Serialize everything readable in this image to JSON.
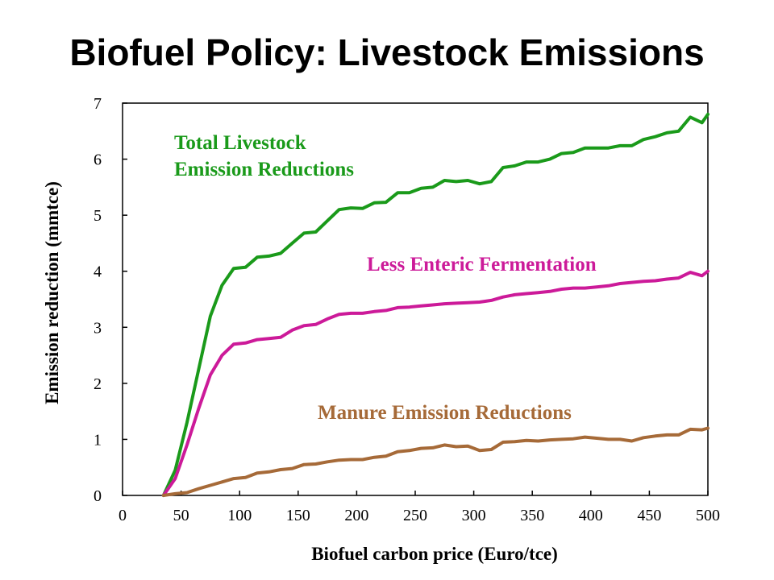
{
  "chart_data": {
    "type": "line",
    "title": "Biofuel Policy: Livestock Emissions",
    "xlabel": "Biofuel carbon price (Euro/tce)",
    "ylabel": "Emission reduction (mmtce)",
    "xlim": [
      0,
      500
    ],
    "ylim": [
      0,
      7
    ],
    "xticks": [
      0,
      50,
      100,
      150,
      200,
      250,
      300,
      350,
      400,
      450,
      500
    ],
    "yticks": [
      0,
      1,
      2,
      3,
      4,
      5,
      6,
      7
    ],
    "x": [
      35,
      45,
      55,
      65,
      75,
      85,
      95,
      105,
      115,
      125,
      135,
      145,
      155,
      165,
      175,
      185,
      195,
      205,
      215,
      225,
      235,
      245,
      255,
      265,
      275,
      285,
      295,
      305,
      315,
      325,
      335,
      345,
      355,
      365,
      375,
      385,
      395,
      405,
      415,
      425,
      435,
      445,
      455,
      465,
      475,
      485,
      495,
      500
    ],
    "series": [
      {
        "name": "Total Livestock Emission Reductions",
        "color": "#1a9a1a",
        "values": [
          0,
          0.45,
          1.3,
          2.25,
          3.2,
          3.75,
          4.05,
          4.07,
          4.25,
          4.27,
          4.32,
          4.5,
          4.68,
          4.7,
          4.9,
          5.1,
          5.13,
          5.12,
          5.22,
          5.23,
          5.4,
          5.4,
          5.48,
          5.5,
          5.62,
          5.6,
          5.62,
          5.56,
          5.6,
          5.85,
          5.88,
          5.95,
          5.95,
          6.0,
          6.1,
          6.12,
          6.2,
          6.2,
          6.2,
          6.24,
          6.24,
          6.35,
          6.4,
          6.47,
          6.5,
          6.75,
          6.65,
          6.8
        ]
      },
      {
        "name": "Less Enteric Fermentation",
        "color": "#cc1a99",
        "values": [
          0,
          0.3,
          0.9,
          1.55,
          2.15,
          2.5,
          2.7,
          2.72,
          2.78,
          2.8,
          2.82,
          2.95,
          3.03,
          3.05,
          3.15,
          3.23,
          3.25,
          3.25,
          3.28,
          3.3,
          3.35,
          3.36,
          3.38,
          3.4,
          3.42,
          3.43,
          3.44,
          3.45,
          3.48,
          3.54,
          3.58,
          3.6,
          3.62,
          3.64,
          3.68,
          3.7,
          3.7,
          3.72,
          3.74,
          3.78,
          3.8,
          3.82,
          3.83,
          3.86,
          3.88,
          3.98,
          3.92,
          4.0
        ]
      },
      {
        "name": "Manure Emission Reductions",
        "color": "#a66a38",
        "values": [
          0,
          0.03,
          0.05,
          0.12,
          0.18,
          0.24,
          0.3,
          0.32,
          0.4,
          0.42,
          0.46,
          0.48,
          0.55,
          0.56,
          0.6,
          0.63,
          0.64,
          0.64,
          0.68,
          0.7,
          0.78,
          0.8,
          0.84,
          0.85,
          0.9,
          0.87,
          0.88,
          0.8,
          0.82,
          0.95,
          0.96,
          0.98,
          0.97,
          0.99,
          1.0,
          1.01,
          1.04,
          1.02,
          1.0,
          1.0,
          0.97,
          1.03,
          1.06,
          1.08,
          1.08,
          1.18,
          1.17,
          1.2
        ]
      }
    ]
  }
}
